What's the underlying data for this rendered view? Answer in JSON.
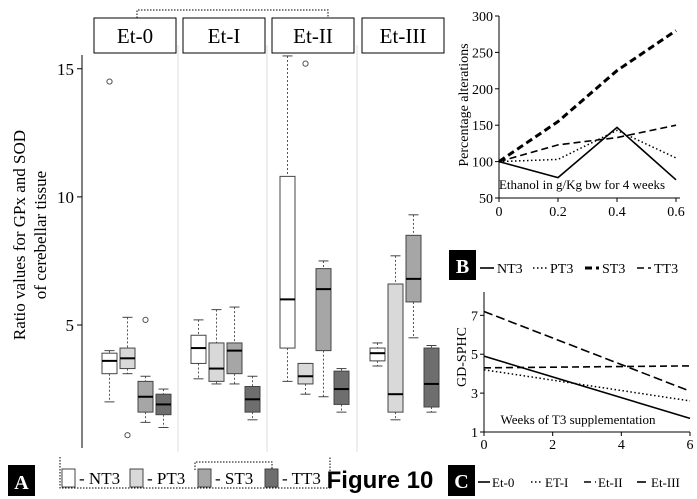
{
  "figure": {
    "caption": "Figure 10"
  },
  "chart_data": [
    {
      "panel": "A",
      "type": "box",
      "ylabel_lines": [
        "Ratio values for GPx and SOD",
        "of cerebellar tissue"
      ],
      "y_ticks": [
        5,
        10,
        15
      ],
      "ylim": [
        0.2,
        16.2
      ],
      "groups": [
        "Et-0",
        "Et-I",
        "Et-II",
        "Et-III"
      ],
      "series": [
        {
          "name": "NT3",
          "color": "#ffffff"
        },
        {
          "name": "PT3",
          "color": "#d9d9d9"
        },
        {
          "name": "ST3",
          "color": "#a6a6a6"
        },
        {
          "name": "TT3",
          "color": "#6e6e6e"
        }
      ],
      "boxes": [
        {
          "group": "Et-0",
          "series": "NT3",
          "min": 2.0,
          "q1": 3.1,
          "median": 3.6,
          "q3": 3.9,
          "max": 4.0,
          "outliers": [
            14.5
          ]
        },
        {
          "group": "Et-0",
          "series": "PT3",
          "min": 3.1,
          "q1": 3.3,
          "median": 3.7,
          "q3": 4.1,
          "max": 5.3,
          "outliers": [
            0.7
          ]
        },
        {
          "group": "Et-0",
          "series": "ST3",
          "min": 1.2,
          "q1": 1.6,
          "median": 2.2,
          "q3": 2.8,
          "max": 3.0,
          "outliers": [
            5.2
          ]
        },
        {
          "group": "Et-0",
          "series": "TT3",
          "min": 1.0,
          "q1": 1.5,
          "median": 1.9,
          "q3": 2.3,
          "max": 2.5,
          "outliers": []
        },
        {
          "group": "Et-I",
          "series": "NT3",
          "min": 2.9,
          "q1": 3.5,
          "median": 4.1,
          "q3": 4.6,
          "max": 5.2,
          "outliers": []
        },
        {
          "group": "Et-I",
          "series": "PT3",
          "min": 2.7,
          "q1": 2.8,
          "median": 3.3,
          "q3": 4.3,
          "max": 5.6,
          "outliers": []
        },
        {
          "group": "Et-I",
          "series": "ST3",
          "min": 2.7,
          "q1": 3.1,
          "median": 4.0,
          "q3": 4.3,
          "max": 5.7,
          "outliers": []
        },
        {
          "group": "Et-I",
          "series": "TT3",
          "min": 1.3,
          "q1": 1.6,
          "median": 2.1,
          "q3": 2.6,
          "max": 3.0,
          "outliers": []
        },
        {
          "group": "Et-II",
          "series": "NT3",
          "min": 2.8,
          "q1": 4.1,
          "median": 6.0,
          "q3": 10.8,
          "max": 15.5,
          "outliers": []
        },
        {
          "group": "Et-II",
          "series": "PT3",
          "min": 2.3,
          "q1": 2.7,
          "median": 3.0,
          "q3": 3.5,
          "max": 3.5,
          "outliers": [
            15.2
          ]
        },
        {
          "group": "Et-II",
          "series": "ST3",
          "min": 2.2,
          "q1": 4.0,
          "median": 6.4,
          "q3": 7.2,
          "max": 7.5,
          "outliers": []
        },
        {
          "group": "Et-II",
          "series": "TT3",
          "min": 1.6,
          "q1": 1.9,
          "median": 2.5,
          "q3": 3.2,
          "max": 3.3,
          "outliers": []
        },
        {
          "group": "Et-III",
          "series": "NT3",
          "min": 3.4,
          "q1": 3.6,
          "median": 3.9,
          "q3": 4.1,
          "max": 4.3,
          "outliers": []
        },
        {
          "group": "Et-III",
          "series": "PT3",
          "min": 1.3,
          "q1": 1.6,
          "median": 2.3,
          "q3": 6.6,
          "max": 7.7,
          "outliers": []
        },
        {
          "group": "Et-III",
          "series": "ST3",
          "min": 4.5,
          "q1": 5.9,
          "median": 6.8,
          "q3": 8.5,
          "max": 9.3,
          "outliers": []
        },
        {
          "group": "Et-III",
          "series": "TT3",
          "min": 1.6,
          "q1": 1.8,
          "median": 2.7,
          "q3": 4.1,
          "max": 4.2,
          "outliers": []
        }
      ]
    },
    {
      "panel": "B",
      "type": "line",
      "ylabel": "Percentage alterations",
      "xlabel": "Ethanol in g/Kg bw for 4 weeks",
      "x": [
        0,
        0.2,
        0.4,
        0.6
      ],
      "x_tick_labels": [
        "0",
        "0.2",
        "0.4",
        "0.6"
      ],
      "y_ticks": [
        50,
        100,
        150,
        200,
        250,
        300
      ],
      "xlim": [
        0,
        0.6
      ],
      "ylim": [
        50,
        300
      ],
      "legend": [
        "NT3",
        "PT3",
        "ST3",
        "TT3"
      ],
      "series": [
        {
          "name": "NT3",
          "style": "solid",
          "values": [
            100,
            78,
            147,
            75
          ]
        },
        {
          "name": "PT3",
          "style": "dotted",
          "values": [
            100,
            103,
            143,
            105
          ]
        },
        {
          "name": "ST3",
          "style": "dashed-thick",
          "values": [
            100,
            155,
            225,
            280
          ]
        },
        {
          "name": "TT3",
          "style": "dashed",
          "values": [
            100,
            123,
            133,
            150
          ]
        }
      ]
    },
    {
      "panel": "C",
      "type": "line",
      "ylabel": "GD-SPHC",
      "xlabel": "Weeks of T3 supplementation",
      "x": [
        0,
        6
      ],
      "x_tick_labels": [
        "0",
        "2",
        "4",
        "6"
      ],
      "y_ticks": [
        1,
        3,
        5,
        7
      ],
      "xlim": [
        0,
        6
      ],
      "ylim": [
        1,
        8.2
      ],
      "legend": [
        "Et-0",
        "ET-I",
        "Et-II",
        "Et-III"
      ],
      "series": [
        {
          "name": "Et-0",
          "style": "solid",
          "values": [
            4.9,
            1.7
          ]
        },
        {
          "name": "ET-I",
          "style": "dotted",
          "values": [
            4.2,
            2.6
          ]
        },
        {
          "name": "Et-II",
          "style": "dashed",
          "values": [
            4.3,
            4.4
          ]
        },
        {
          "name": "Et-III",
          "style": "dashed-long",
          "values": [
            7.2,
            3.1
          ]
        }
      ]
    }
  ]
}
